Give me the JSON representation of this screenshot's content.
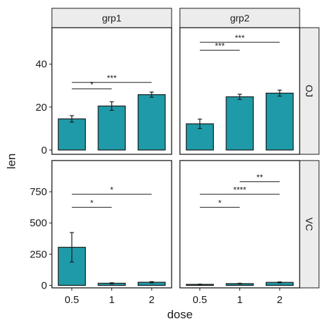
{
  "chart_data": {
    "type": "bar",
    "title": "",
    "xlabel": "dose",
    "ylabel": "len",
    "categories": [
      "0.5",
      "1",
      "2"
    ],
    "column_facets": [
      "grp1",
      "grp2"
    ],
    "row_facets": [
      "OJ",
      "VC"
    ],
    "bar_color": "#1f9aa8",
    "rows": [
      {
        "facet": "OJ",
        "ylim": [
          -2,
          57
        ],
        "y_ticks": [
          0,
          20,
          40
        ],
        "y_tick_labels": [
          "0",
          "20",
          "40"
        ],
        "panels": [
          {
            "facet": "grp1",
            "values": [
              14.5,
              20.5,
              25.8
            ],
            "errors": [
              1.5,
              2.0,
              1.2
            ],
            "brackets": [
              {
                "from": "0.5",
                "to": "1",
                "y": 28.5,
                "label": "*"
              },
              {
                "from": "0.5",
                "to": "2",
                "y": 31.5,
                "label": "***"
              }
            ]
          },
          {
            "facet": "grp2",
            "values": [
              12.2,
              24.8,
              26.5
            ],
            "errors": [
              2.2,
              1.2,
              1.4
            ],
            "brackets": [
              {
                "from": "0.5",
                "to": "1",
                "y": 46.5,
                "label": "***"
              },
              {
                "from": "0.5",
                "to": "2",
                "y": 50.2,
                "label": "***"
              }
            ]
          }
        ]
      },
      {
        "facet": "VC",
        "ylim": [
          -20,
          1000
        ],
        "y_ticks": [
          0,
          250,
          500,
          750
        ],
        "y_tick_labels": [
          "0",
          "250",
          "500",
          "750"
        ],
        "panels": [
          {
            "facet": "grp1",
            "values": [
              305,
              17,
              25
            ],
            "errors": [
              118,
              4,
              5
            ],
            "brackets": [
              {
                "from": "0.5",
                "to": "1",
                "y": 625,
                "label": "*"
              },
              {
                "from": "0.5",
                "to": "2",
                "y": 730,
                "label": "*"
              }
            ]
          },
          {
            "facet": "grp2",
            "values": [
              8,
              14,
              24
            ],
            "errors": [
              2,
              3,
              4
            ],
            "brackets": [
              {
                "from": "0.5",
                "to": "1",
                "y": 625,
                "label": "*"
              },
              {
                "from": "0.5",
                "to": "2",
                "y": 730,
                "label": "****"
              },
              {
                "from": "1",
                "to": "2",
                "y": 830,
                "label": "**"
              }
            ]
          }
        ]
      }
    ]
  }
}
